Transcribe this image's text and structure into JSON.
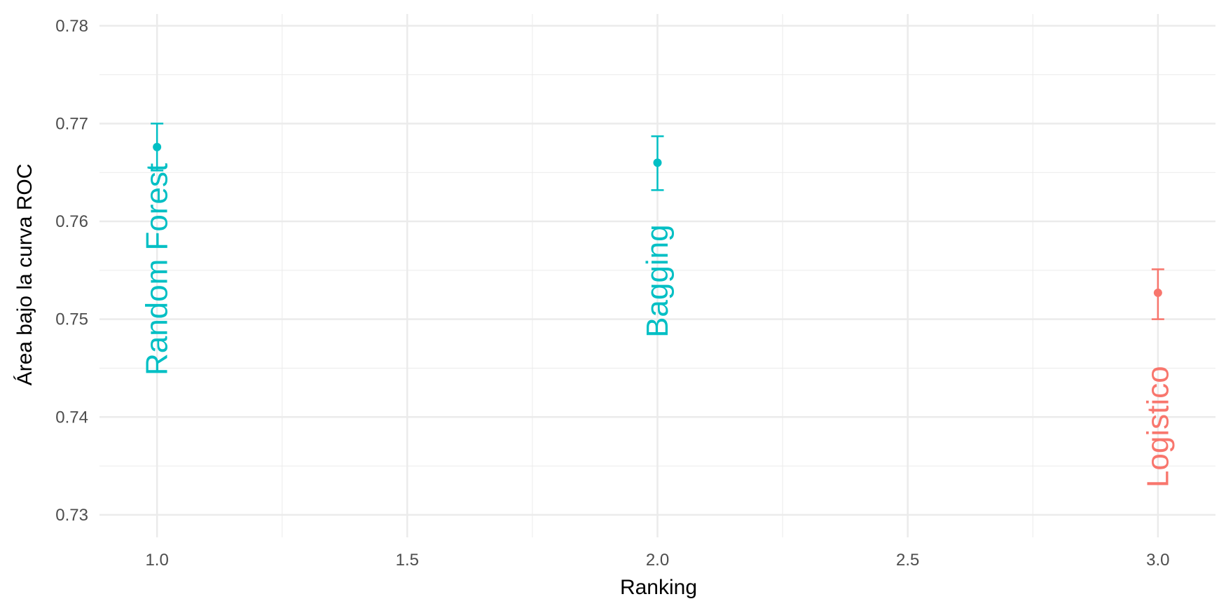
{
  "chart_data": {
    "type": "scatter",
    "title": "",
    "xlabel": "Ranking",
    "ylabel": "Área bajo la curva ROC",
    "xlim": [
      0.885,
      3.115
    ],
    "ylim": [
      0.7277,
      0.7812
    ],
    "x_ticks": [
      "1.0",
      "1.5",
      "2.0",
      "2.5",
      "3.0"
    ],
    "y_ticks": [
      "0.73",
      "0.74",
      "0.75",
      "0.76",
      "0.77",
      "0.78"
    ],
    "x_tick_values": [
      1.0,
      1.5,
      2.0,
      2.5,
      3.0
    ],
    "y_tick_values": [
      0.73,
      0.74,
      0.75,
      0.76,
      0.77,
      0.78
    ],
    "grid": true,
    "legend": "none",
    "colors": {
      "ensemble": "#00BFC4",
      "single": "#F8766D",
      "grid": "#ebebeb"
    },
    "points": [
      {
        "label": "Random Forest",
        "x": 1,
        "y": 0.7676,
        "ymin": 0.7652,
        "ymax": 0.77,
        "color": "#00BFC4",
        "label_center_y": 0.7551
      },
      {
        "label": "Bagging",
        "x": 2,
        "y": 0.766,
        "ymin": 0.7632,
        "ymax": 0.7687,
        "color": "#00BFC4",
        "label_center_y": 0.7539
      },
      {
        "label": "Logistico",
        "x": 3,
        "y": 0.7527,
        "ymin": 0.75,
        "ymax": 0.7551,
        "color": "#F8766D",
        "label_center_y": 0.739
      }
    ]
  }
}
